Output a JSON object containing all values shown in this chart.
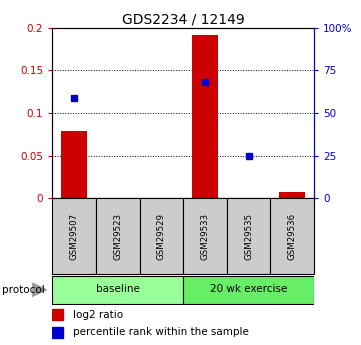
{
  "title": "GDS2234 / 12149",
  "samples": [
    "GSM29507",
    "GSM29523",
    "GSM29529",
    "GSM29533",
    "GSM29535",
    "GSM29536"
  ],
  "log2_ratio": [
    0.079,
    0.0,
    0.0,
    0.191,
    0.0,
    0.008
  ],
  "percentile_rank": [
    59,
    null,
    null,
    68,
    25,
    null
  ],
  "ylim_left": [
    0,
    0.2
  ],
  "ylim_right": [
    0,
    100
  ],
  "yticks_left": [
    0,
    0.05,
    0.1,
    0.15,
    0.2
  ],
  "ytick_labels_left": [
    "0",
    "0.05",
    "0.1",
    "0.15",
    "0.2"
  ],
  "yticks_right": [
    0,
    25,
    50,
    75,
    100
  ],
  "ytick_labels_right": [
    "0",
    "25",
    "50",
    "75",
    "100%"
  ],
  "bar_color": "#cc0000",
  "dot_color": "#0000cc",
  "protocol_groups": [
    {
      "label": "baseline",
      "samples": [
        "GSM29507",
        "GSM29523",
        "GSM29529"
      ],
      "color": "#99ff99"
    },
    {
      "label": "20 wk exercise",
      "samples": [
        "GSM29533",
        "GSM29535",
        "GSM29536"
      ],
      "color": "#66ee66"
    }
  ],
  "legend_bar_label": "log2 ratio",
  "legend_dot_label": "percentile rank within the sample",
  "protocol_label": "protocol",
  "bar_width": 0.6,
  "sample_box_color": "#cccccc",
  "protocol_arrow_color": "#999999"
}
